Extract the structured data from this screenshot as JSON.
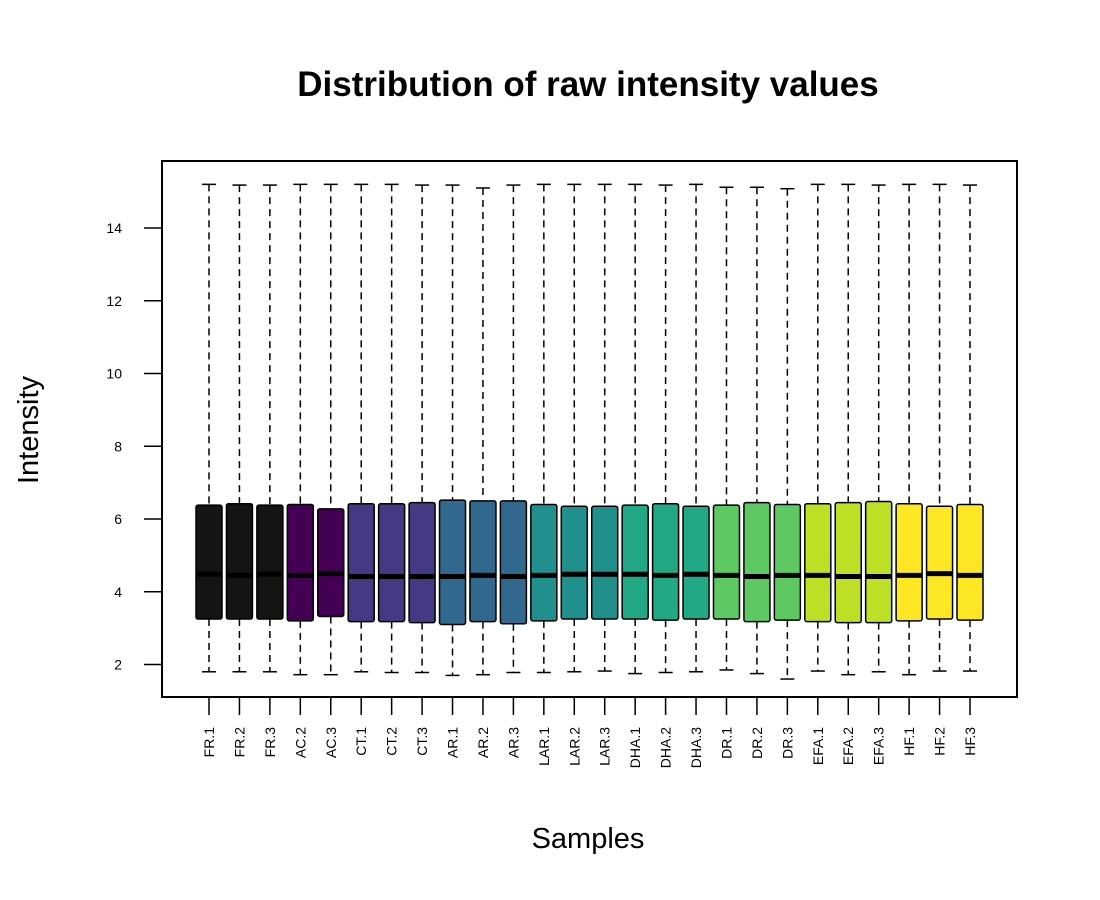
{
  "chart_data": {
    "type": "boxplot",
    "title": "Distribution of raw intensity values",
    "xlabel": "Samples",
    "ylabel": "Intensity",
    "ylim": [
      1.1,
      15.8
    ],
    "yticks": [
      2,
      4,
      6,
      8,
      10,
      12,
      14
    ],
    "ytick_labels": [
      "2",
      "4",
      "6",
      "8",
      "10",
      "12",
      "14"
    ],
    "grid": false,
    "categories": [
      "FR.1",
      "FR.2",
      "FR.3",
      "AC.2",
      "AC.3",
      "CT.1",
      "CT.2",
      "CT.3",
      "AR.1",
      "AR.2",
      "AR.3",
      "LAR.1",
      "LAR.2",
      "LAR.3",
      "DHA.1",
      "DHA.2",
      "DHA.3",
      "DR.1",
      "DR.2",
      "DR.3",
      "EFA.1",
      "EFA.2",
      "EFA.3",
      "HF.1",
      "HF.2",
      "HF.3"
    ],
    "colors": [
      "#141414",
      "#141414",
      "#141414",
      "#440154",
      "#440154",
      "#443983",
      "#443983",
      "#443983",
      "#31688e",
      "#31688e",
      "#31688e",
      "#21908d",
      "#21908d",
      "#21908d",
      "#22a884",
      "#22a884",
      "#22a884",
      "#5ec962",
      "#5ec962",
      "#5ec962",
      "#bddf26",
      "#bddf26",
      "#bddf26",
      "#fde725",
      "#fde725",
      "#fde725"
    ],
    "boxes": [
      {
        "min": 1.8,
        "q1": 3.25,
        "median": 4.48,
        "q3": 6.38,
        "max": 15.2
      },
      {
        "min": 1.8,
        "q1": 3.25,
        "median": 4.45,
        "q3": 6.42,
        "max": 15.18
      },
      {
        "min": 1.8,
        "q1": 3.25,
        "median": 4.48,
        "q3": 6.38,
        "max": 15.18
      },
      {
        "min": 1.72,
        "q1": 3.2,
        "median": 4.45,
        "q3": 6.4,
        "max": 15.2
      },
      {
        "min": 1.72,
        "q1": 3.32,
        "median": 4.5,
        "q3": 6.28,
        "max": 15.2
      },
      {
        "min": 1.8,
        "q1": 3.18,
        "median": 4.42,
        "q3": 6.42,
        "max": 15.2
      },
      {
        "min": 1.78,
        "q1": 3.18,
        "median": 4.42,
        "q3": 6.42,
        "max": 15.2
      },
      {
        "min": 1.78,
        "q1": 3.15,
        "median": 4.42,
        "q3": 6.45,
        "max": 15.18
      },
      {
        "min": 1.7,
        "q1": 3.1,
        "median": 4.42,
        "q3": 6.52,
        "max": 15.18
      },
      {
        "min": 1.72,
        "q1": 3.18,
        "median": 4.45,
        "q3": 6.5,
        "max": 15.1
      },
      {
        "min": 1.78,
        "q1": 3.12,
        "median": 4.42,
        "q3": 6.5,
        "max": 15.18
      },
      {
        "min": 1.78,
        "q1": 3.2,
        "median": 4.45,
        "q3": 6.4,
        "max": 15.2
      },
      {
        "min": 1.8,
        "q1": 3.25,
        "median": 4.48,
        "q3": 6.35,
        "max": 15.2
      },
      {
        "min": 1.82,
        "q1": 3.25,
        "median": 4.48,
        "q3": 6.35,
        "max": 15.2
      },
      {
        "min": 1.75,
        "q1": 3.25,
        "median": 4.48,
        "q3": 6.38,
        "max": 15.2
      },
      {
        "min": 1.78,
        "q1": 3.22,
        "median": 4.45,
        "q3": 6.42,
        "max": 15.18
      },
      {
        "min": 1.8,
        "q1": 3.25,
        "median": 4.48,
        "q3": 6.35,
        "max": 15.2
      },
      {
        "min": 1.85,
        "q1": 3.25,
        "median": 4.45,
        "q3": 6.38,
        "max": 15.12
      },
      {
        "min": 1.75,
        "q1": 3.18,
        "median": 4.42,
        "q3": 6.45,
        "max": 15.12
      },
      {
        "min": 1.6,
        "q1": 3.22,
        "median": 4.45,
        "q3": 6.4,
        "max": 15.08
      },
      {
        "min": 1.82,
        "q1": 3.18,
        "median": 4.45,
        "q3": 6.42,
        "max": 15.2
      },
      {
        "min": 1.72,
        "q1": 3.15,
        "median": 4.42,
        "q3": 6.45,
        "max": 15.2
      },
      {
        "min": 1.8,
        "q1": 3.15,
        "median": 4.42,
        "q3": 6.48,
        "max": 15.18
      },
      {
        "min": 1.72,
        "q1": 3.2,
        "median": 4.45,
        "q3": 6.42,
        "max": 15.2
      },
      {
        "min": 1.82,
        "q1": 3.25,
        "median": 4.5,
        "q3": 6.35,
        "max": 15.2
      },
      {
        "min": 1.82,
        "q1": 3.22,
        "median": 4.45,
        "q3": 6.4,
        "max": 15.18
      }
    ]
  }
}
